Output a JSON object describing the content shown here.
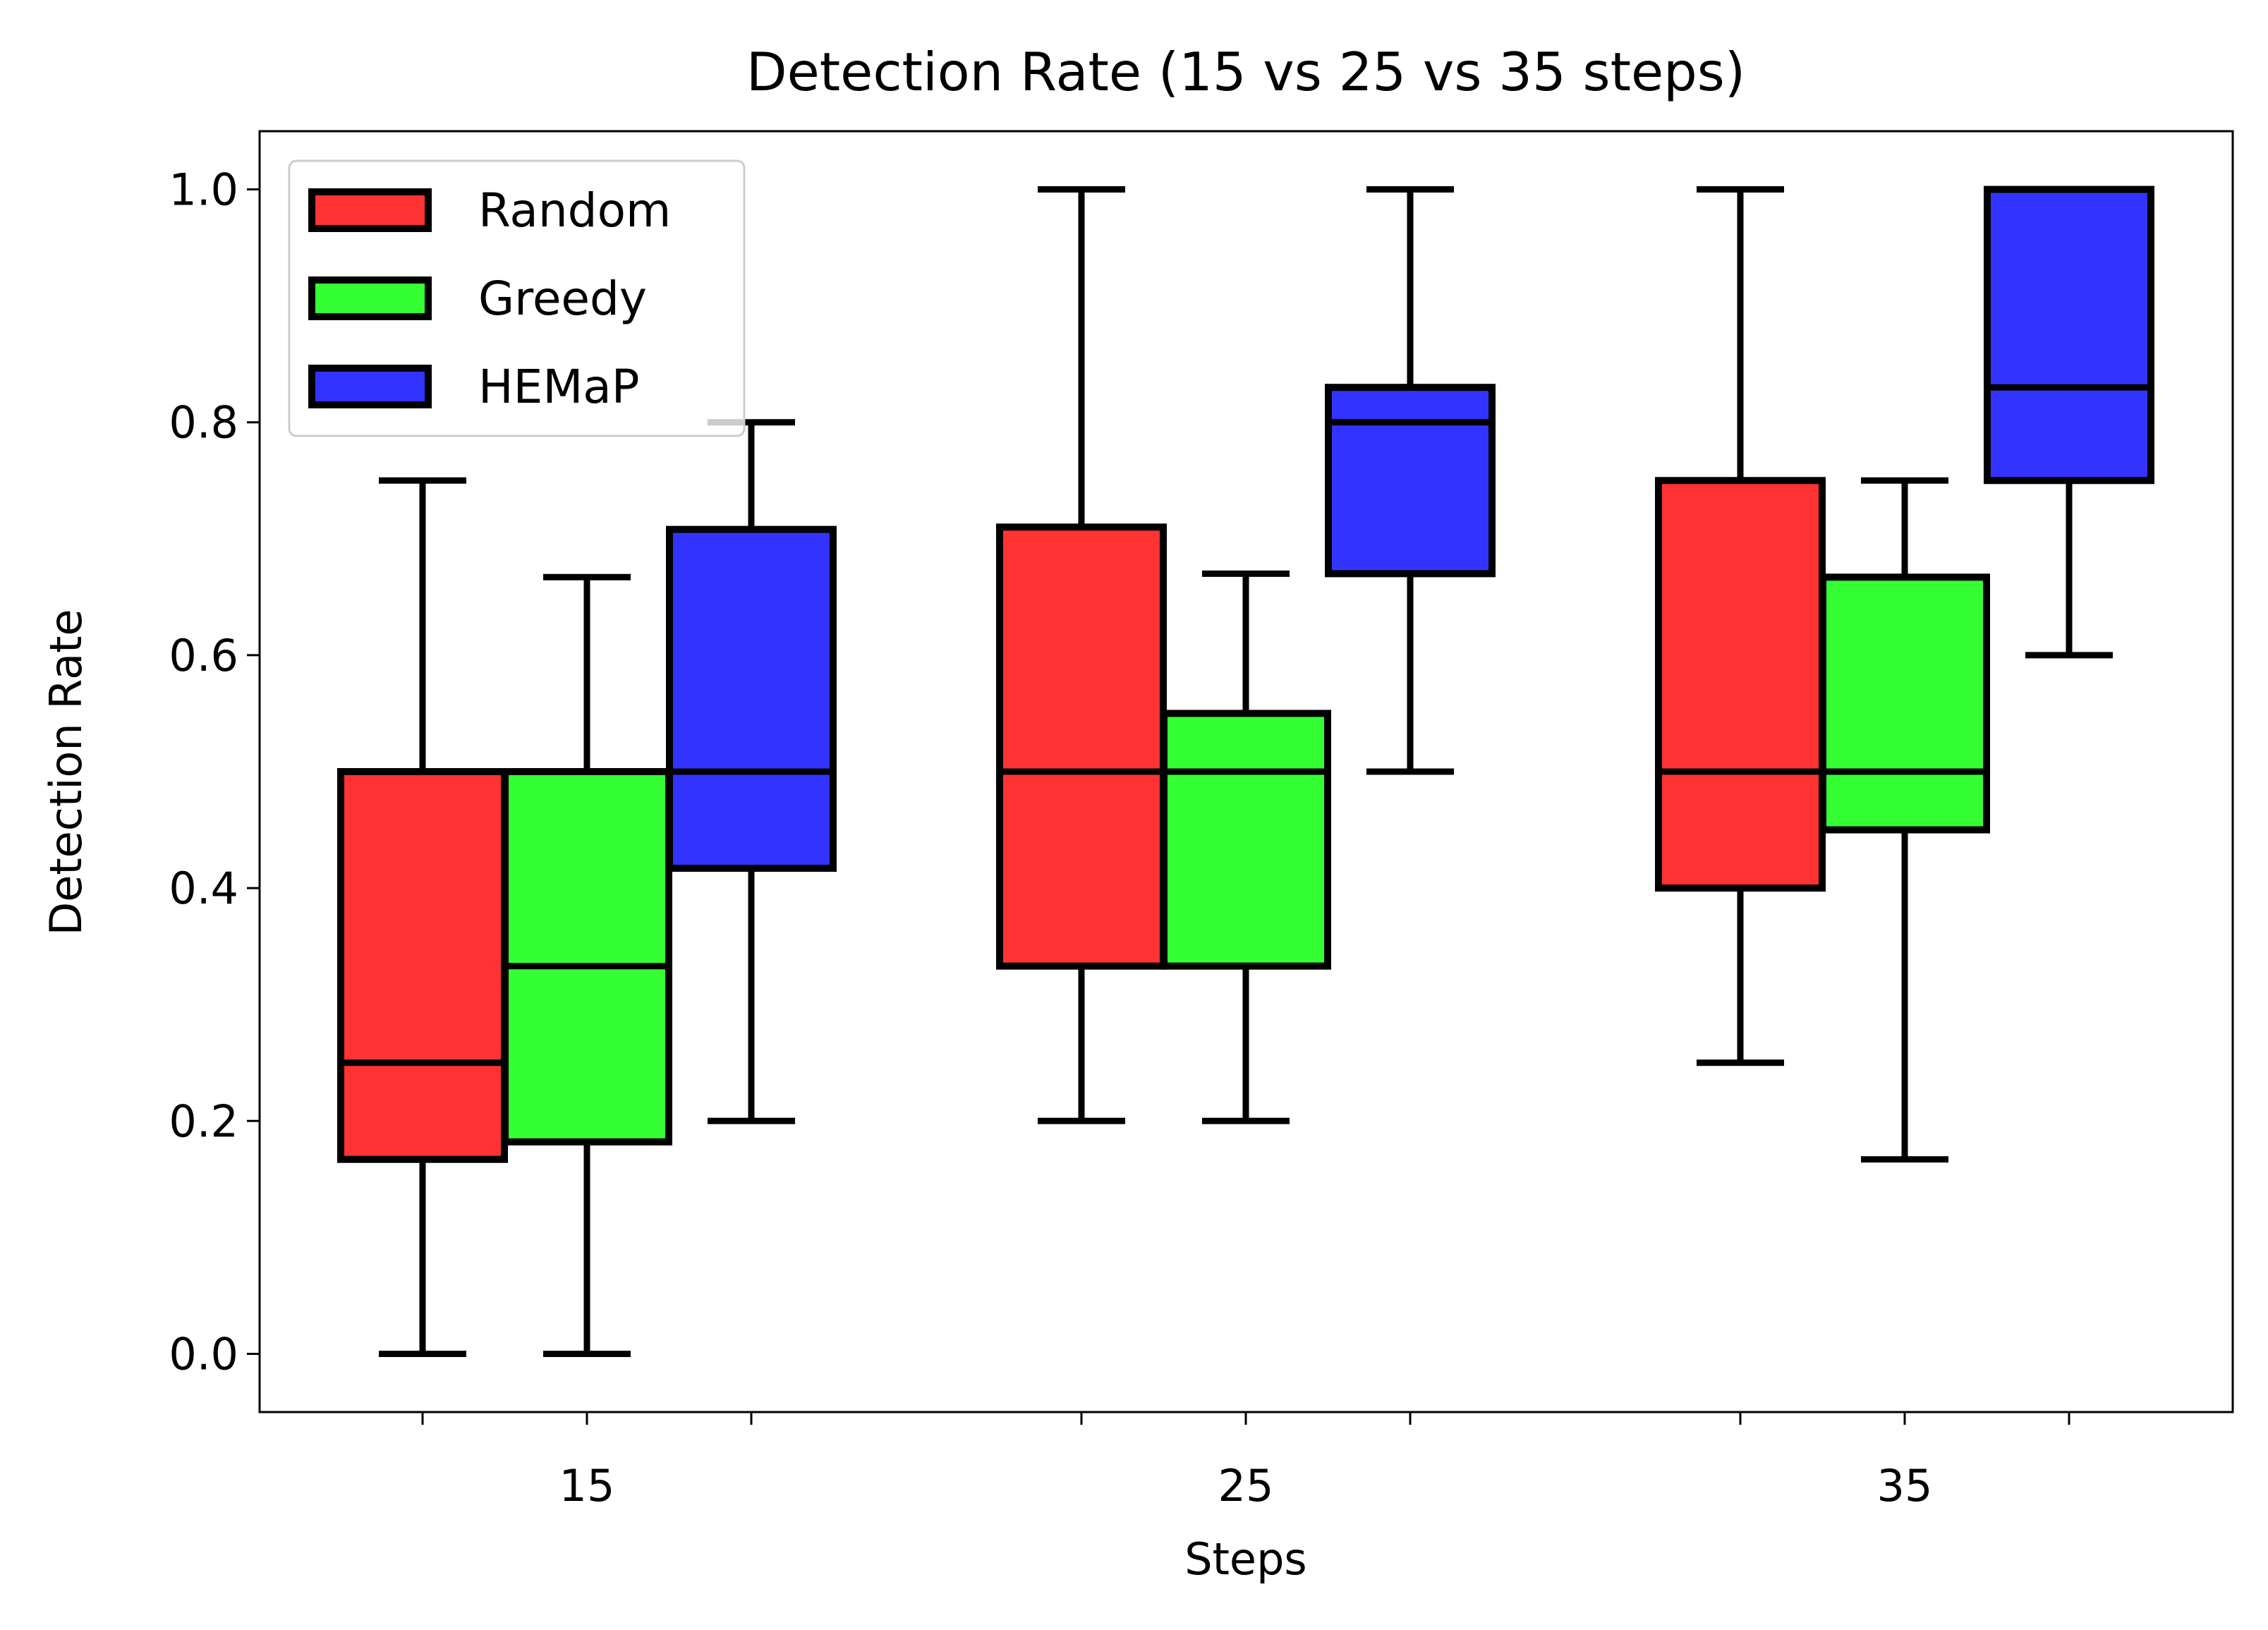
{
  "chart_data": {
    "type": "box",
    "title": "Detection Rate (15 vs 25 vs 35 steps)",
    "xlabel": "Steps",
    "ylabel": "Detection Rate",
    "categories": [
      "15",
      "25",
      "35"
    ],
    "ylim": [
      -0.05,
      1.05
    ],
    "yticks": [
      "0.0",
      "0.2",
      "0.4",
      "0.6",
      "0.8",
      "1.0"
    ],
    "legend_position": "top-left",
    "series": [
      {
        "name": "Random",
        "color": "#ff3333",
        "boxes": [
          {
            "whisker_low": 0.0,
            "q1": 0.167,
            "median": 0.25,
            "q3": 0.5,
            "whisker_high": 0.75
          },
          {
            "whisker_low": 0.2,
            "q1": 0.333,
            "median": 0.5,
            "q3": 0.71,
            "whisker_high": 1.0
          },
          {
            "whisker_low": 0.25,
            "q1": 0.4,
            "median": 0.5,
            "q3": 0.75,
            "whisker_high": 1.0
          }
        ]
      },
      {
        "name": "Greedy",
        "color": "#33ff33",
        "boxes": [
          {
            "whisker_low": 0.0,
            "q1": 0.182,
            "median": 0.333,
            "q3": 0.5,
            "whisker_high": 0.667
          },
          {
            "whisker_low": 0.2,
            "q1": 0.333,
            "median": 0.5,
            "q3": 0.55,
            "whisker_high": 0.67
          },
          {
            "whisker_low": 0.167,
            "q1": 0.45,
            "median": 0.5,
            "q3": 0.667,
            "whisker_high": 0.75
          }
        ]
      },
      {
        "name": "HEMaP",
        "color": "#3333ff",
        "boxes": [
          {
            "whisker_low": 0.2,
            "q1": 0.417,
            "median": 0.5,
            "q3": 0.708,
            "whisker_high": 0.8
          },
          {
            "whisker_low": 0.5,
            "q1": 0.67,
            "median": 0.8,
            "q3": 0.83,
            "whisker_high": 1.0
          },
          {
            "whisker_low": 0.6,
            "q1": 0.75,
            "median": 0.83,
            "q3": 1.0,
            "whisker_high": 1.0
          }
        ]
      }
    ]
  }
}
